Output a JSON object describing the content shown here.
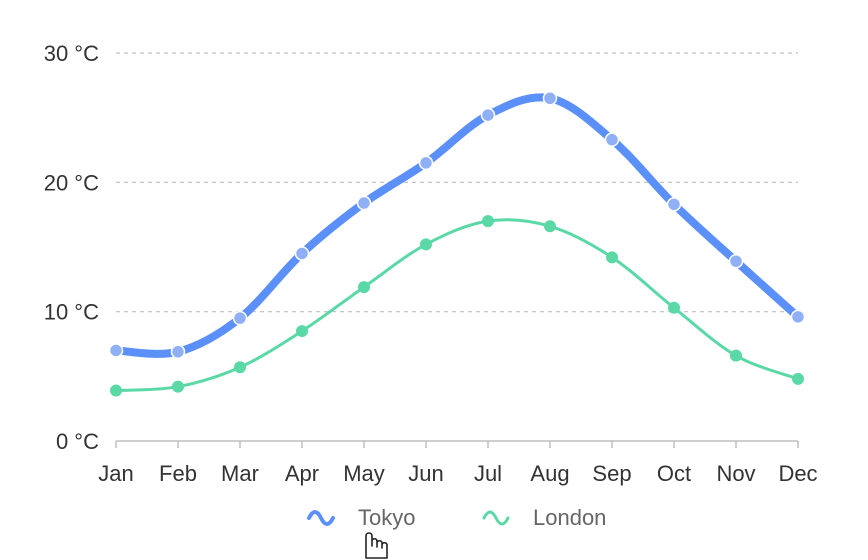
{
  "chart_data": {
    "type": "line",
    "categories": [
      "Jan",
      "Feb",
      "Mar",
      "Apr",
      "May",
      "Jun",
      "Jul",
      "Aug",
      "Sep",
      "Oct",
      "Nov",
      "Dec"
    ],
    "y_ticks": [
      "0 °C",
      "10 °C",
      "20 °C",
      "30 °C"
    ],
    "ylim": [
      0,
      30
    ],
    "grid": true,
    "legend_position": "bottom",
    "smooth": true,
    "series": [
      {
        "name": "Tokyo",
        "color": "#5b8ff9",
        "emphasized": true,
        "values": [
          7.0,
          6.9,
          9.5,
          14.5,
          18.4,
          21.5,
          25.2,
          26.5,
          23.3,
          18.3,
          13.9,
          9.6
        ]
      },
      {
        "name": "London",
        "color": "#5ad8a6",
        "emphasized": false,
        "values": [
          3.9,
          4.2,
          5.7,
          8.5,
          11.9,
          15.2,
          17.0,
          16.6,
          14.2,
          10.3,
          6.6,
          4.8
        ]
      }
    ]
  },
  "legend": {
    "items": [
      {
        "label": "Tokyo",
        "icon": "wave-line-icon",
        "color": "#5b8ff9"
      },
      {
        "label": "London",
        "icon": "wave-line-icon",
        "color": "#5ad8a6"
      }
    ]
  },
  "cursor": {
    "icon": "hand-pointer-icon"
  }
}
